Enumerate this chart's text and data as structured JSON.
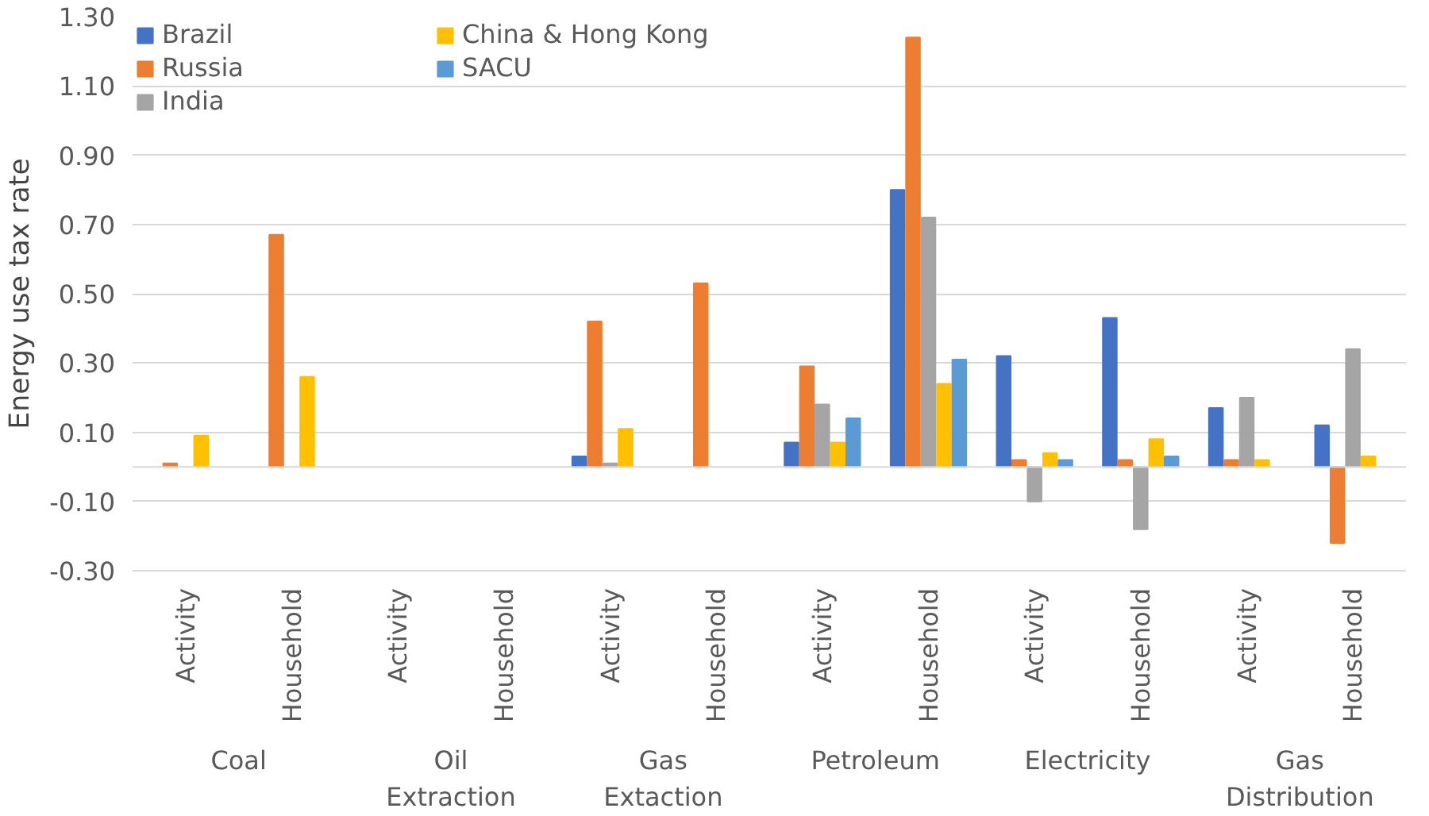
{
  "chart_data": {
    "type": "bar",
    "ylabel": "Energy use tax rate",
    "categories": [
      "Activity",
      "Household",
      "Activity",
      "Household",
      "Activity",
      "Household",
      "Activity",
      "Household",
      "Activity",
      "Household",
      "Activity",
      "Household"
    ],
    "annotations": [
      "Coal",
      "Oil Extraction",
      "Gas Extaction",
      "Petroleum",
      "Electricity",
      "Gas Distribution"
    ],
    "series": [
      {
        "name": "Brazil",
        "color": "#4472c4",
        "values": [
          null,
          null,
          null,
          null,
          0.03,
          null,
          0.07,
          0.8,
          0.32,
          0.43,
          0.17,
          0.12
        ]
      },
      {
        "name": "Russia",
        "color": "#ed7d31",
        "values": [
          0.01,
          0.67,
          null,
          null,
          0.42,
          0.53,
          0.29,
          1.24,
          0.02,
          0.02,
          0.02,
          -0.22
        ]
      },
      {
        "name": "India",
        "color": "#a5a5a5",
        "values": [
          null,
          null,
          null,
          null,
          0.01,
          null,
          0.18,
          0.72,
          -0.1,
          -0.18,
          0.2,
          0.34
        ]
      },
      {
        "name": "China & Hong Kong",
        "color": "#ffc000",
        "values": [
          0.09,
          0.26,
          null,
          null,
          0.11,
          null,
          0.07,
          0.24,
          0.04,
          0.08,
          0.02,
          0.03
        ]
      },
      {
        "name": "SACU",
        "color": "#5b9bd5",
        "values": [
          null,
          null,
          null,
          null,
          null,
          null,
          0.14,
          0.31,
          0.02,
          0.03,
          null,
          null
        ]
      }
    ],
    "ylim": [
      -0.3,
      1.3
    ],
    "yticks": [
      {
        "value": -0.3,
        "label": "-0.30"
      },
      {
        "value": -0.1,
        "label": "-0.10"
      },
      {
        "value": 0.1,
        "label": "0.10"
      },
      {
        "value": 0.3,
        "label": "0.30"
      },
      {
        "value": 0.5,
        "label": "0.50"
      },
      {
        "value": 0.7,
        "label": "0.70"
      },
      {
        "value": 0.9,
        "label": "0.90"
      },
      {
        "value": 1.1,
        "label": "1.10"
      },
      {
        "value": 1.3,
        "label": "1.30"
      }
    ],
    "grid": "y",
    "legend": "top left"
  }
}
